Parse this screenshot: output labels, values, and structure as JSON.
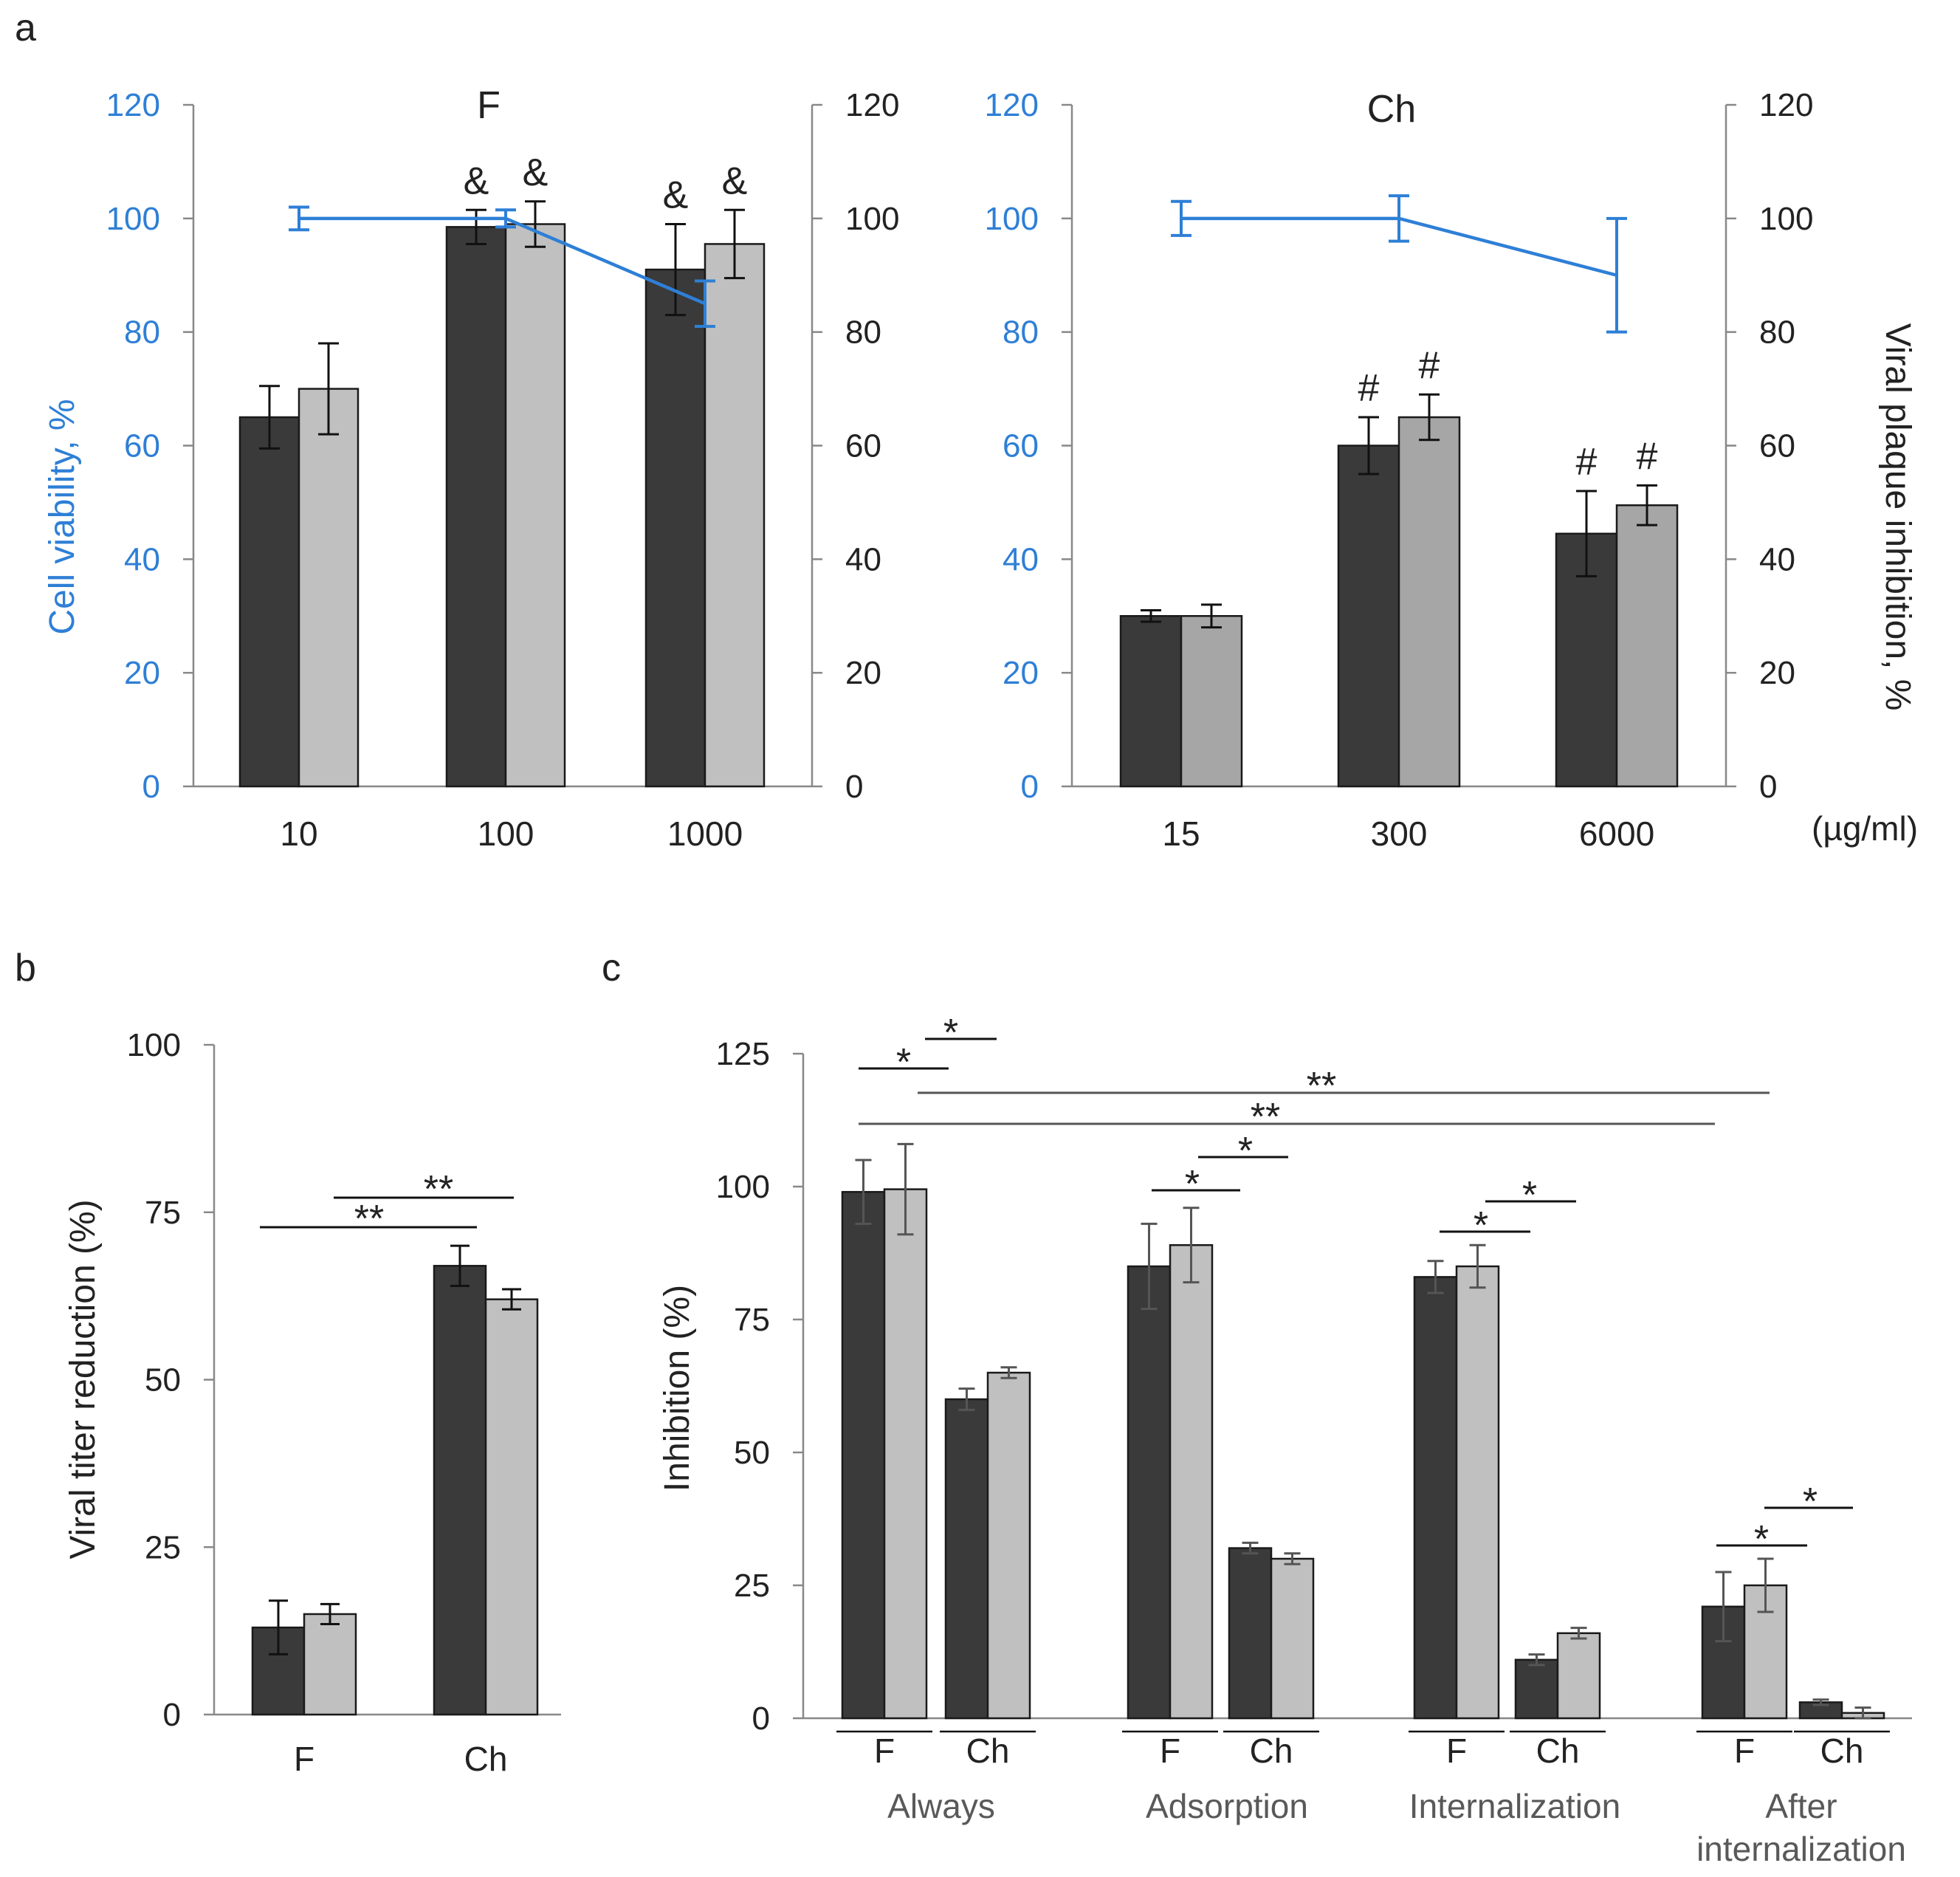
{
  "chart_data": [
    {
      "panel": "a",
      "type": "bar",
      "title": "F",
      "categories": [
        "10",
        "100",
        "1000"
      ],
      "ylim": [
        0,
        120
      ],
      "yticks": [
        "0",
        "20",
        "40",
        "60",
        "80",
        "100",
        "120"
      ],
      "series": [
        {
          "values": [
            65,
            98.5,
            91
          ],
          "errors": [
            5.5,
            3,
            8
          ],
          "color": "#3a3a3a"
        },
        {
          "values": [
            70,
            99,
            95.5
          ],
          "errors": [
            8,
            4,
            6
          ],
          "color": "#c0c0c0"
        }
      ],
      "markers": [
        "",
        "&",
        "&"
      ],
      "line": {
        "values": [
          100,
          100,
          85
        ],
        "errors": [
          2,
          1.5,
          4
        ],
        "color": "#2e7fd6"
      },
      "left_axis_label": "Cell viability, %",
      "grid": false
    },
    {
      "panel": "a",
      "type": "bar",
      "title": "Ch",
      "categories": [
        "15",
        "300",
        "6000"
      ],
      "ylim": [
        0,
        120
      ],
      "yticks": [
        "0",
        "20",
        "40",
        "60",
        "80",
        "100",
        "120"
      ],
      "series": [
        {
          "values": [
            30,
            60,
            44.5
          ],
          "errors": [
            1,
            5,
            7.5
          ],
          "color": "#3a3a3a"
        },
        {
          "values": [
            30,
            65,
            49.5
          ],
          "errors": [
            2,
            4,
            3.5
          ],
          "color": "#a6a6a6"
        }
      ],
      "markers": [
        "",
        "#",
        "#"
      ],
      "line": {
        "values": [
          100,
          100,
          90
        ],
        "errors": [
          3,
          4,
          10
        ],
        "color": "#2e7fd6"
      },
      "right_axis_label": "Viral plaque inhibition, %",
      "unit_label": "(µg/ml)",
      "grid": false
    },
    {
      "panel": "b",
      "type": "bar",
      "categories": [
        "F",
        "Ch"
      ],
      "ylim": [
        0,
        100
      ],
      "yticks": [
        "0",
        "25",
        "50",
        "75",
        "100"
      ],
      "ylabel": "Viral titer reduction (%)",
      "series": [
        {
          "values": [
            13,
            67
          ],
          "errors": [
            4,
            3
          ],
          "color": "#3a3a3a"
        },
        {
          "values": [
            15,
            62
          ],
          "errors": [
            1.5,
            1.5
          ],
          "color": "#c0c0c0"
        }
      ],
      "significance": [
        "**",
        "**"
      ],
      "grid": false
    },
    {
      "panel": "c",
      "type": "bar",
      "groups": [
        "Always",
        "Adsorption",
        "Internalization",
        "After internalization"
      ],
      "subcategories": [
        "F",
        "Ch"
      ],
      "ylim": [
        0,
        125
      ],
      "yticks": [
        "0",
        "25",
        "50",
        "75",
        "100",
        "125"
      ],
      "ylabel": "Inhibition (%)",
      "series": [
        {
          "values": [
            99,
            60,
            85,
            32,
            83,
            11,
            21,
            3
          ],
          "errors": [
            6,
            2,
            8,
            1,
            3,
            1,
            6.5,
            0.5
          ],
          "color": "#3a3a3a"
        },
        {
          "values": [
            99.5,
            65,
            89,
            30,
            85,
            16,
            25,
            1
          ],
          "errors": [
            8.5,
            1,
            7,
            1,
            4,
            1,
            5,
            1
          ],
          "color": "#c0c0c0"
        }
      ],
      "significance": [
        "*",
        "*",
        "*",
        "*",
        "*",
        "*",
        "*",
        "*",
        "**",
        "**"
      ],
      "grid": false
    }
  ],
  "labels": {
    "panel_a": "a",
    "panel_b": "b",
    "panel_c": "c",
    "group_line2": [
      "After",
      "internalization"
    ]
  }
}
